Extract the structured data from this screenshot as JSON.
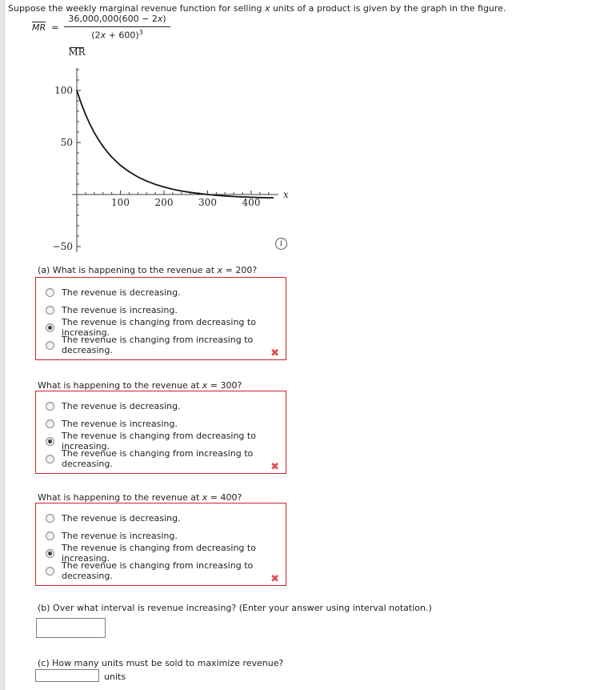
{
  "problem": {
    "title_pre": "Suppose the weekly marginal revenue function for selling ",
    "title_var": "x",
    "title_post": " units of a product is given by the graph in the figure."
  },
  "formula": {
    "lhs": "MR",
    "eq": "=",
    "num_pre": "36,000,000(600 − 2",
    "var": "x",
    "num_post": ")",
    "den_pre": "(2",
    "den_post": " + 600)",
    "exp": "3"
  },
  "chart_data": {
    "type": "line",
    "title": "",
    "xlabel": "x",
    "ylabel": "MR",
    "xlim": [
      0,
      455
    ],
    "ylim": [
      -55,
      120
    ],
    "x_major_ticks": [
      100,
      200,
      300,
      400
    ],
    "x_minor_step": 20,
    "x_minor_range": [
      20,
      440
    ],
    "y_major_ticks": [
      -50,
      50,
      100
    ],
    "y_minor_step": 10,
    "y_minor_range": [
      -40,
      120
    ],
    "grid": false,
    "legend": "none",
    "function_label": "MR = 36,000,000(600 - 2x)/(2x + 600)^3",
    "series": [
      {
        "name": "MR",
        "points": [
          [
            0,
            100
          ],
          [
            10,
            87.6
          ],
          [
            20,
            76.9
          ],
          [
            30,
            67.6
          ],
          [
            40,
            59.5
          ],
          [
            50,
            52.5
          ],
          [
            60,
            46.3
          ],
          [
            70,
            40.9
          ],
          [
            80,
            36.1
          ],
          [
            90,
            31.9
          ],
          [
            100,
            28.1
          ],
          [
            120,
            21.9
          ],
          [
            140,
            16.9
          ],
          [
            160,
            12.9
          ],
          [
            180,
            9.8
          ],
          [
            200,
            7.2
          ],
          [
            220,
            5.1
          ],
          [
            240,
            3.4
          ],
          [
            260,
            2.1
          ],
          [
            280,
            0.9
          ],
          [
            300,
            0
          ],
          [
            320,
            -0.8
          ],
          [
            340,
            -1.4
          ],
          [
            360,
            -1.9
          ],
          [
            380,
            -2.3
          ],
          [
            400,
            -2.6
          ],
          [
            420,
            -2.9
          ],
          [
            440,
            -3.1
          ],
          [
            450,
            -3.2
          ]
        ]
      }
    ]
  },
  "graph": {
    "info_glyph": "i"
  },
  "marks": {
    "incorrect_glyph": "✖"
  },
  "mc_options": [
    "The revenue is decreasing.",
    "The revenue is increasing.",
    "The revenue is changing from decreasing to increasing.",
    "The revenue is changing from increasing to decreasing."
  ],
  "question_blocks": [
    {
      "label_pre": "(a) What is happening to the revenue at ",
      "label_var": "x",
      "label_post": " = 200?",
      "selected_index": 2,
      "result": "incorrect"
    },
    {
      "label_pre": "What is happening to the revenue at ",
      "label_var": "x",
      "label_post": " = 300?",
      "selected_index": 2,
      "result": "incorrect"
    },
    {
      "label_pre": "What is happening to the revenue at ",
      "label_var": "x",
      "label_post": " = 400?",
      "selected_index": 2,
      "result": "incorrect"
    }
  ],
  "part_b": {
    "label": "(b) Over what interval is revenue increasing? (Enter your answer using interval notation.)",
    "input_value": "",
    "input_placeholder": ""
  },
  "part_c": {
    "label": "(c) How many units must be sold to maximize revenue?",
    "input_value": "",
    "input_placeholder": "",
    "units_label": "units"
  }
}
